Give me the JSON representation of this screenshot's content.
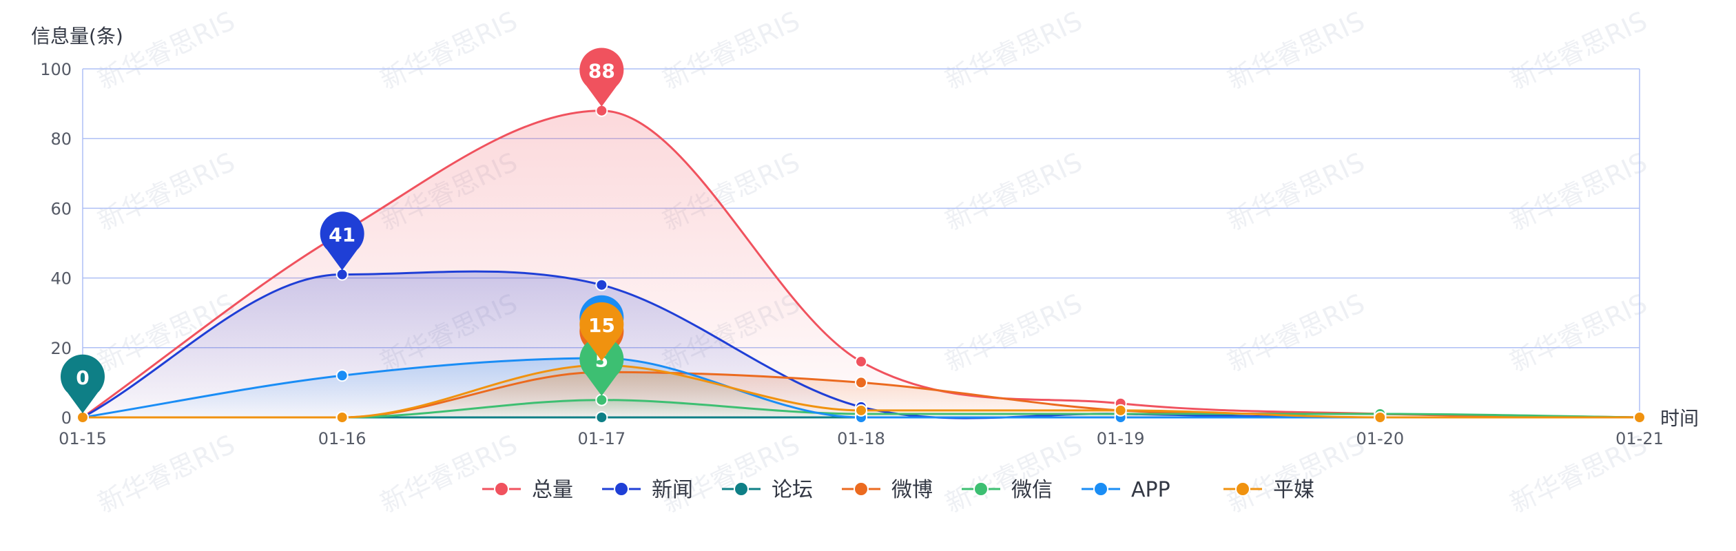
{
  "chart_data": {
    "type": "area",
    "ylabel": "信息量(条)",
    "xlabel": "时间",
    "categories": [
      "01-15",
      "01-16",
      "01-17",
      "01-18",
      "01-19",
      "01-20",
      "01-21"
    ],
    "ylim": [
      0,
      100
    ],
    "yticks": [
      0,
      20,
      40,
      60,
      80,
      100
    ],
    "grid": true,
    "legend_position": "bottom",
    "series": [
      {
        "name": "总量",
        "color": "#f0525e",
        "values": [
          0,
          53,
          88,
          16,
          4,
          1,
          0
        ],
        "area": true
      },
      {
        "name": "新闻",
        "color": "#1f3fd6",
        "values": [
          0,
          41,
          38,
          3,
          1,
          0,
          0
        ],
        "area": true
      },
      {
        "name": "论坛",
        "color": "#0e7f86",
        "values": [
          0,
          0,
          0,
          0,
          0,
          0,
          0
        ],
        "area": true
      },
      {
        "name": "微博",
        "color": "#eb6a1f",
        "values": [
          0,
          0,
          13,
          10,
          2,
          1,
          0
        ],
        "area": true
      },
      {
        "name": "微信",
        "color": "#3dbf72",
        "values": [
          0,
          0,
          5,
          1,
          1,
          1,
          0
        ],
        "area": true
      },
      {
        "name": "APP",
        "color": "#1a8df5",
        "values": [
          0,
          12,
          17,
          0,
          0,
          0,
          0
        ],
        "area": true
      },
      {
        "name": "平媒",
        "color": "#f0920f",
        "values": [
          0,
          0,
          15,
          2,
          2,
          0,
          0
        ],
        "area": true
      }
    ],
    "markers": [
      {
        "series": "总量",
        "index": 2,
        "label": "88"
      },
      {
        "series": "新闻",
        "index": 1,
        "label": "41"
      },
      {
        "series": "论坛",
        "index": 0,
        "label": "0"
      },
      {
        "series": "APP",
        "index": 2,
        "label": ""
      },
      {
        "series": "微博",
        "index": 2,
        "label": ""
      },
      {
        "series": "微信",
        "index": 2,
        "label": "5"
      },
      {
        "series": "平媒",
        "index": 2,
        "label": "15"
      }
    ]
  },
  "watermark": "新华睿思RIS"
}
